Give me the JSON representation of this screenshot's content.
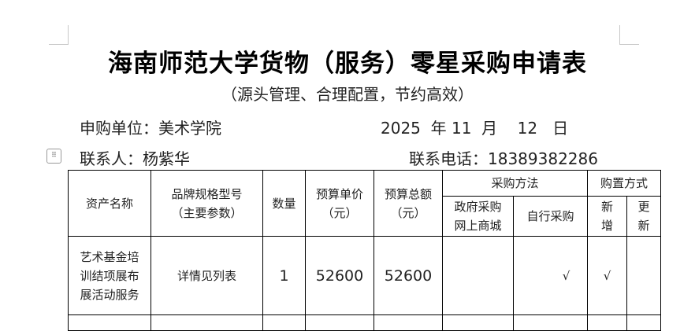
{
  "title": "海南师范大学货物（服务）零星采购申请表",
  "subtitle": "（源头管理、合理配置，节约高效）",
  "applicant_unit": {
    "label": "申购单位：",
    "value": "美术学院"
  },
  "date": {
    "year": "2025",
    "year_unit": "年",
    "month": "11",
    "month_unit": "月",
    "day": "12",
    "day_unit": "日"
  },
  "contact": {
    "label": "联系人：",
    "value": "杨紫华"
  },
  "phone": {
    "label": "联系电话：",
    "value": "18389382286"
  },
  "table": {
    "headers": {
      "asset_name": "资产名称",
      "brand_spec": "品牌规格型号",
      "brand_spec_sub": "（主要参数）",
      "quantity": "数量",
      "unit_price": "预算单价",
      "unit_price_sub": "（元）",
      "total": "预算总额",
      "total_sub": "（元）",
      "method": "采购方法",
      "method_gov1": "政府采购",
      "method_gov2": "网上商城",
      "method_self": "自行采购",
      "purchase_type": "购置方式",
      "type_new1": "新",
      "type_new2": "增",
      "type_renew1": "更",
      "type_renew2": "新"
    },
    "rows": [
      {
        "asset_name": [
          "艺术基金培",
          "训结项展布",
          "展活动服务"
        ],
        "brand_spec": "详情见列表",
        "quantity": "1",
        "unit_price": "52600",
        "total": "52600",
        "gov_mall": "",
        "self_purchase": "√",
        "new": "√",
        "renew": ""
      }
    ]
  }
}
